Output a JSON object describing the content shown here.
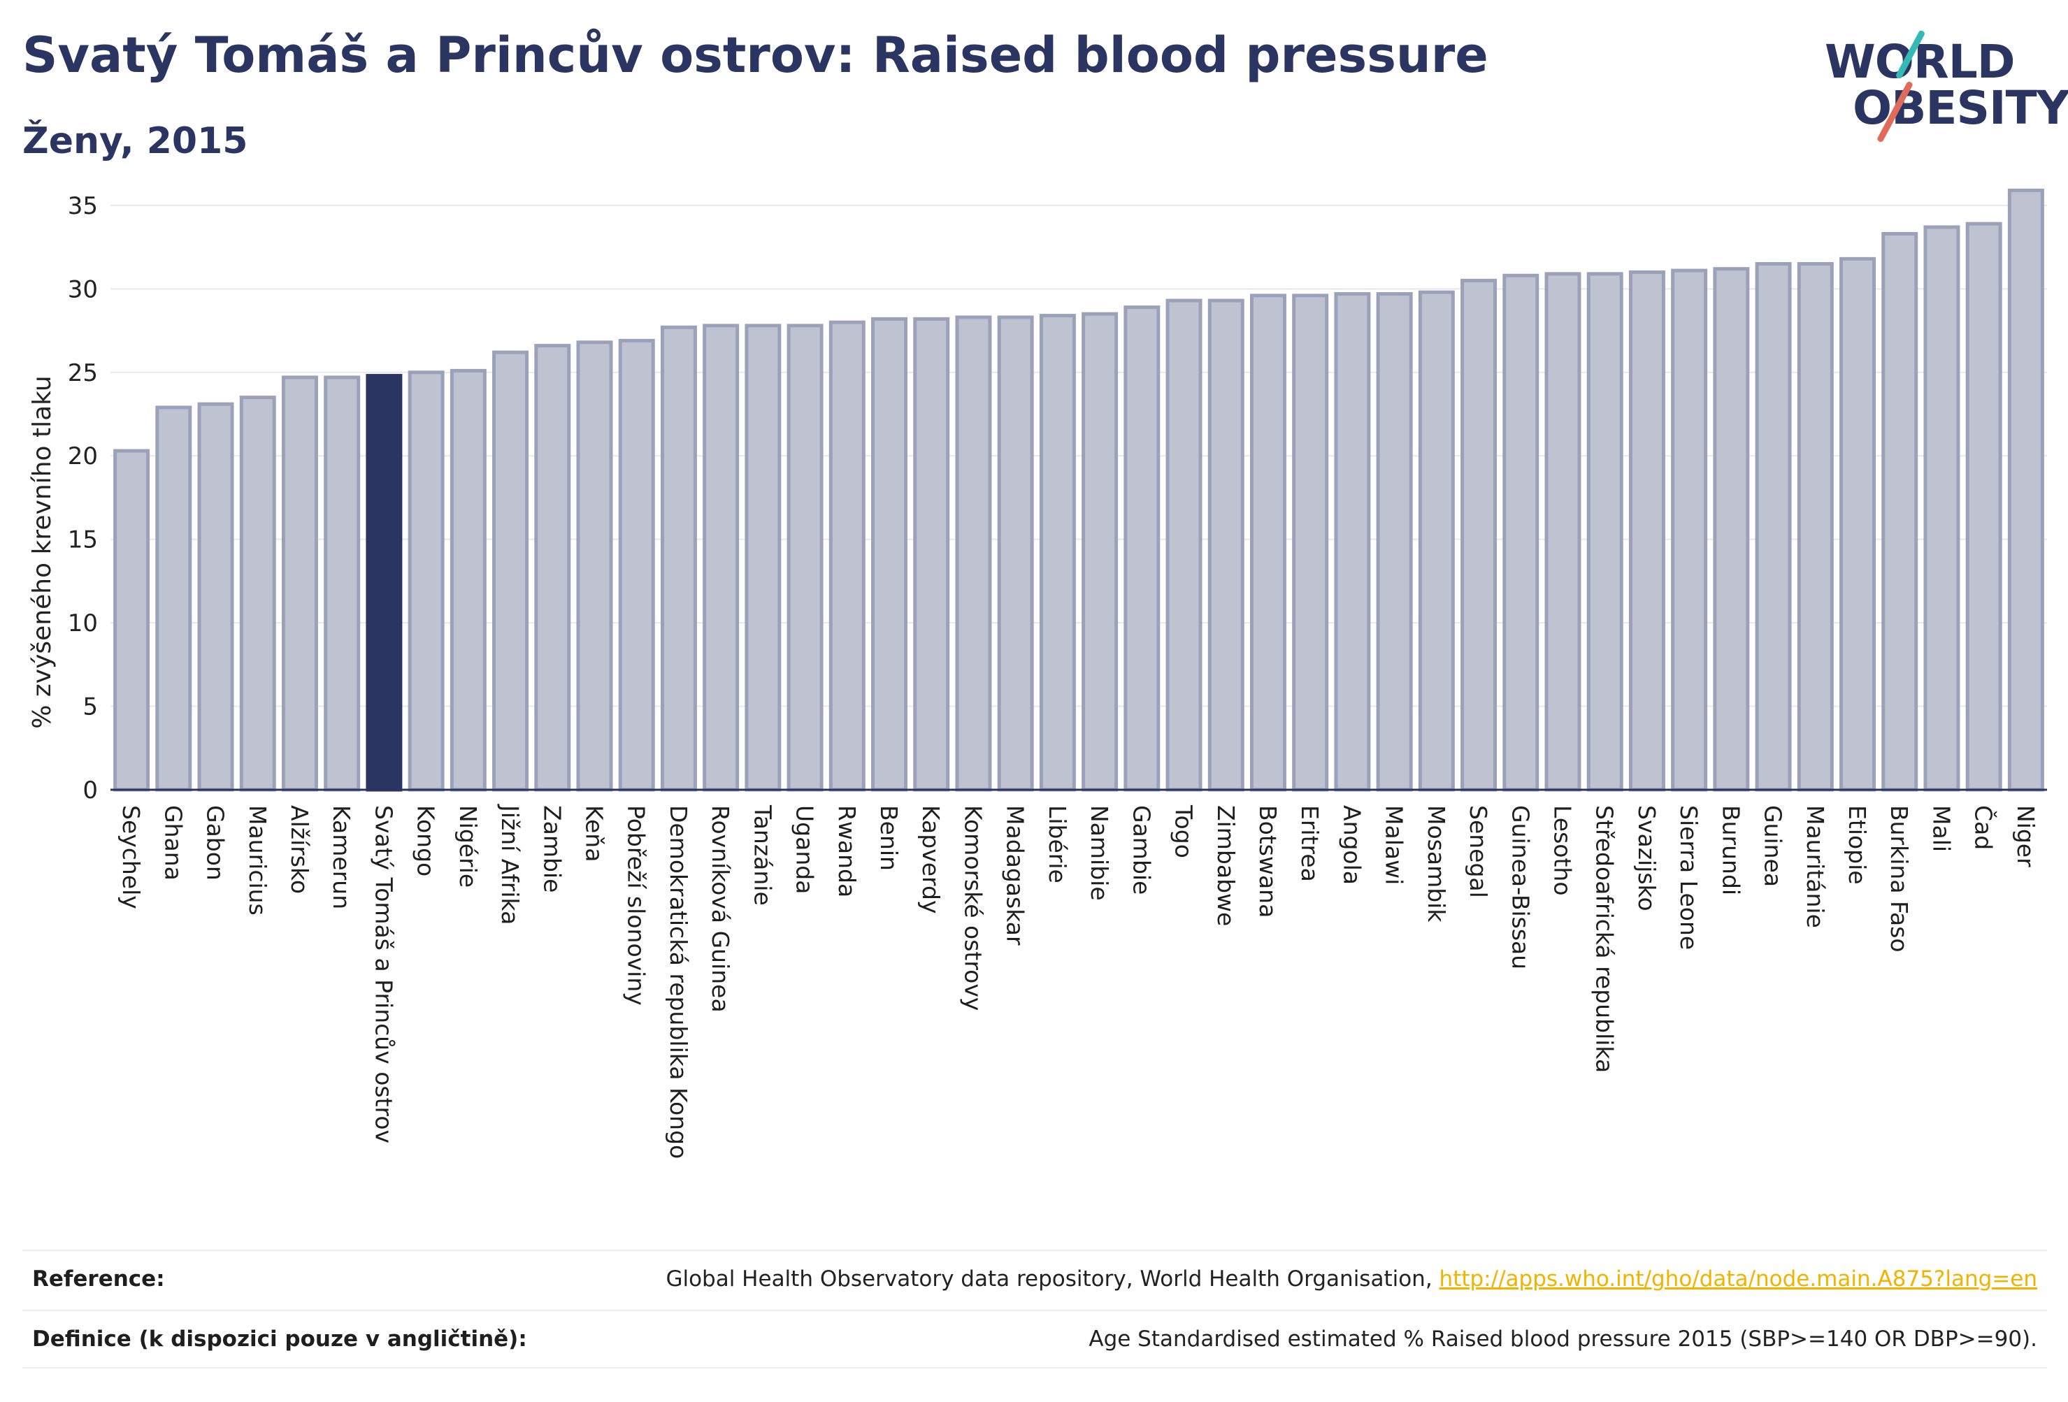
{
  "header": {
    "title": "Svatý Tomáš a Princův ostrov: Raised blood pressure",
    "subtitle": "Ženy, 2015"
  },
  "logo": {
    "line1": "WORLD",
    "line2": "OBESITY",
    "accent_top": "#35b9b5",
    "accent_bottom": "#e06b5a"
  },
  "colors": {
    "bar_fill": "#bfc3d1",
    "bar_stroke": "#9ba1b9",
    "highlight_fill": "#2b3561",
    "text": "#2b3561",
    "grid": "#e6e8ef"
  },
  "chart_data": {
    "type": "bar",
    "ylabel": "% zvýšeného krevního tlaku",
    "xlabel": "",
    "ylim": [
      0,
      36
    ],
    "yticks": [
      0,
      5,
      10,
      15,
      20,
      25,
      30,
      35
    ],
    "grid": true,
    "highlight": "Svatý Tomáš a Princův ostrov",
    "categories": [
      "Seychely",
      "Ghana",
      "Gabon",
      "Mauricius",
      "Alžírsko",
      "Kamerun",
      "Svatý Tomáš a Princův ostrov",
      "Kongo",
      "Nigérie",
      "Jižní Afrika",
      "Zambie",
      "Keňa",
      "Pobřeží slonoviny",
      "Demokratická republika Kongo",
      "Rovníková Guinea",
      "Tanzánie",
      "Uganda",
      "Rwanda",
      "Benin",
      "Kapverdy",
      "Komorské ostrovy",
      "Madagaskar",
      "Libérie",
      "Namibie",
      "Gambie",
      "Togo",
      "Zimbabwe",
      "Botswana",
      "Eritrea",
      "Angola",
      "Malawi",
      "Mosambik",
      "Senegal",
      "Guinea-Bissau",
      "Lesotho",
      "Středoafrická republika",
      "Svazijsko",
      "Sierra Leone",
      "Burundi",
      "Guinea",
      "Mauritánie",
      "Etiopie",
      "Burkina Faso",
      "Mali",
      "Čad",
      "Niger"
    ],
    "values": [
      20.3,
      22.9,
      23.1,
      23.5,
      24.7,
      24.7,
      24.8,
      25.0,
      25.1,
      26.2,
      26.6,
      26.8,
      26.9,
      27.7,
      27.8,
      27.8,
      27.8,
      28.0,
      28.2,
      28.2,
      28.3,
      28.3,
      28.4,
      28.5,
      28.9,
      29.3,
      29.3,
      29.6,
      29.6,
      29.7,
      29.7,
      29.8,
      30.5,
      30.8,
      30.9,
      30.9,
      31.0,
      31.1,
      31.2,
      31.5,
      31.5,
      31.8,
      33.3,
      33.7,
      33.9,
      35.9
    ]
  },
  "footer": {
    "reference_label": "Reference:",
    "reference_text": "Global Health Observatory data repository, World Health Organisation,",
    "reference_link": "http://apps.who.int/gho/data/node.main.A875?lang=en",
    "definition_label": "Definice (k dispozici pouze v angličtině):",
    "definition_text": "Age Standardised estimated % Raised blood pressure 2015 (SBP>=140 OR DBP>=90)."
  }
}
